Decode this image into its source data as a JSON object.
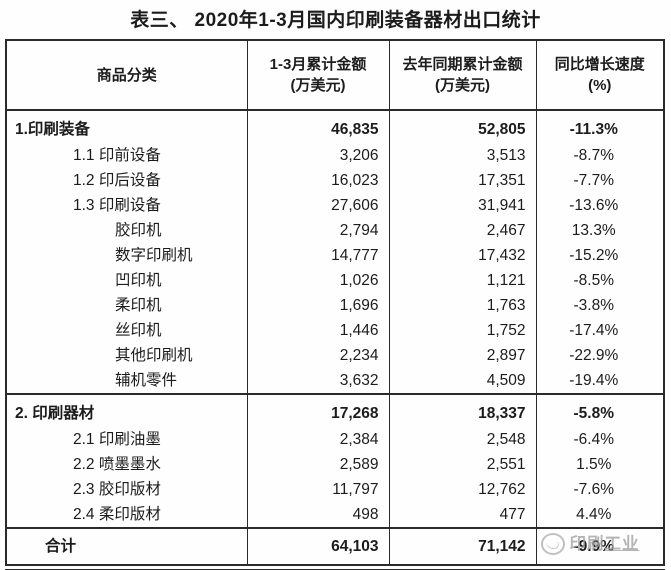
{
  "page": {
    "title": "表三、 2020年1-3月国内印刷装备器材出口统计",
    "background": "#fefefe",
    "text_color": "#1c1c1c",
    "border_color": "#2a2a2a"
  },
  "watermark": {
    "prefix": "印刷",
    "suffix": "工业",
    "color": "#a3a3a3",
    "logo": "circle-logo"
  },
  "chart_data": {
    "type": "table",
    "title": "表三、 2020年1-3月国内印刷装备器材出口统计",
    "headers": [
      {
        "line1": "商品分类",
        "line2": ""
      },
      {
        "line1": "1-3月累计金额",
        "line2": "(万美元)"
      },
      {
        "line1": "去年同期累计金额",
        "line2": "(万美元)"
      },
      {
        "line1": "同比增长速度",
        "line2": "(%)"
      }
    ],
    "rows": [
      {
        "name": "1.印刷装备",
        "cur": "46,835",
        "prev": "52,805",
        "yoy": "-11.3%",
        "level": "section"
      },
      {
        "name": "1.1 印前设备",
        "cur": "3,206",
        "prev": "3,513",
        "yoy": "-8.7%",
        "level": "sub1"
      },
      {
        "name": "1.2 印后设备",
        "cur": "16,023",
        "prev": "17,351",
        "yoy": "-7.7%",
        "level": "sub1"
      },
      {
        "name": "1.3 印刷设备",
        "cur": "27,606",
        "prev": "31,941",
        "yoy": "-13.6%",
        "level": "sub1"
      },
      {
        "name": "胶印机",
        "cur": "2,794",
        "prev": "2,467",
        "yoy": "13.3%",
        "level": "sub2"
      },
      {
        "name": "数字印刷机",
        "cur": "14,777",
        "prev": "17,432",
        "yoy": "-15.2%",
        "level": "sub2"
      },
      {
        "name": "凹印机",
        "cur": "1,026",
        "prev": "1,121",
        "yoy": "-8.5%",
        "level": "sub2"
      },
      {
        "name": "柔印机",
        "cur": "1,696",
        "prev": "1,763",
        "yoy": "-3.8%",
        "level": "sub2"
      },
      {
        "name": "丝印机",
        "cur": "1,446",
        "prev": "1,752",
        "yoy": "-17.4%",
        "level": "sub2"
      },
      {
        "name": "其他印刷机",
        "cur": "2,234",
        "prev": "2,897",
        "yoy": "-22.9%",
        "level": "sub2"
      },
      {
        "name": "辅机零件",
        "cur": "3,632",
        "prev": "4,509",
        "yoy": "-19.4%",
        "level": "sub2"
      },
      {
        "name": "2. 印刷器材",
        "cur": "17,268",
        "prev": "18,337",
        "yoy": "-5.8%",
        "level": "section"
      },
      {
        "name": "2.1 印刷油墨",
        "cur": "2,384",
        "prev": "2,548",
        "yoy": "-6.4%",
        "level": "sub1"
      },
      {
        "name": "2.2 喷墨墨水",
        "cur": "2,589",
        "prev": "2,551",
        "yoy": "1.5%",
        "level": "sub1"
      },
      {
        "name": "2.3 胶印版材",
        "cur": "11,797",
        "prev": "12,762",
        "yoy": "-7.6%",
        "level": "sub1"
      },
      {
        "name": "2.4 柔印版材",
        "cur": "498",
        "prev": "477",
        "yoy": "4.4%",
        "level": "sub1"
      },
      {
        "name": "合计",
        "cur": "64,103",
        "prev": "71,142",
        "yoy": "-9.9%",
        "level": "total"
      }
    ]
  }
}
